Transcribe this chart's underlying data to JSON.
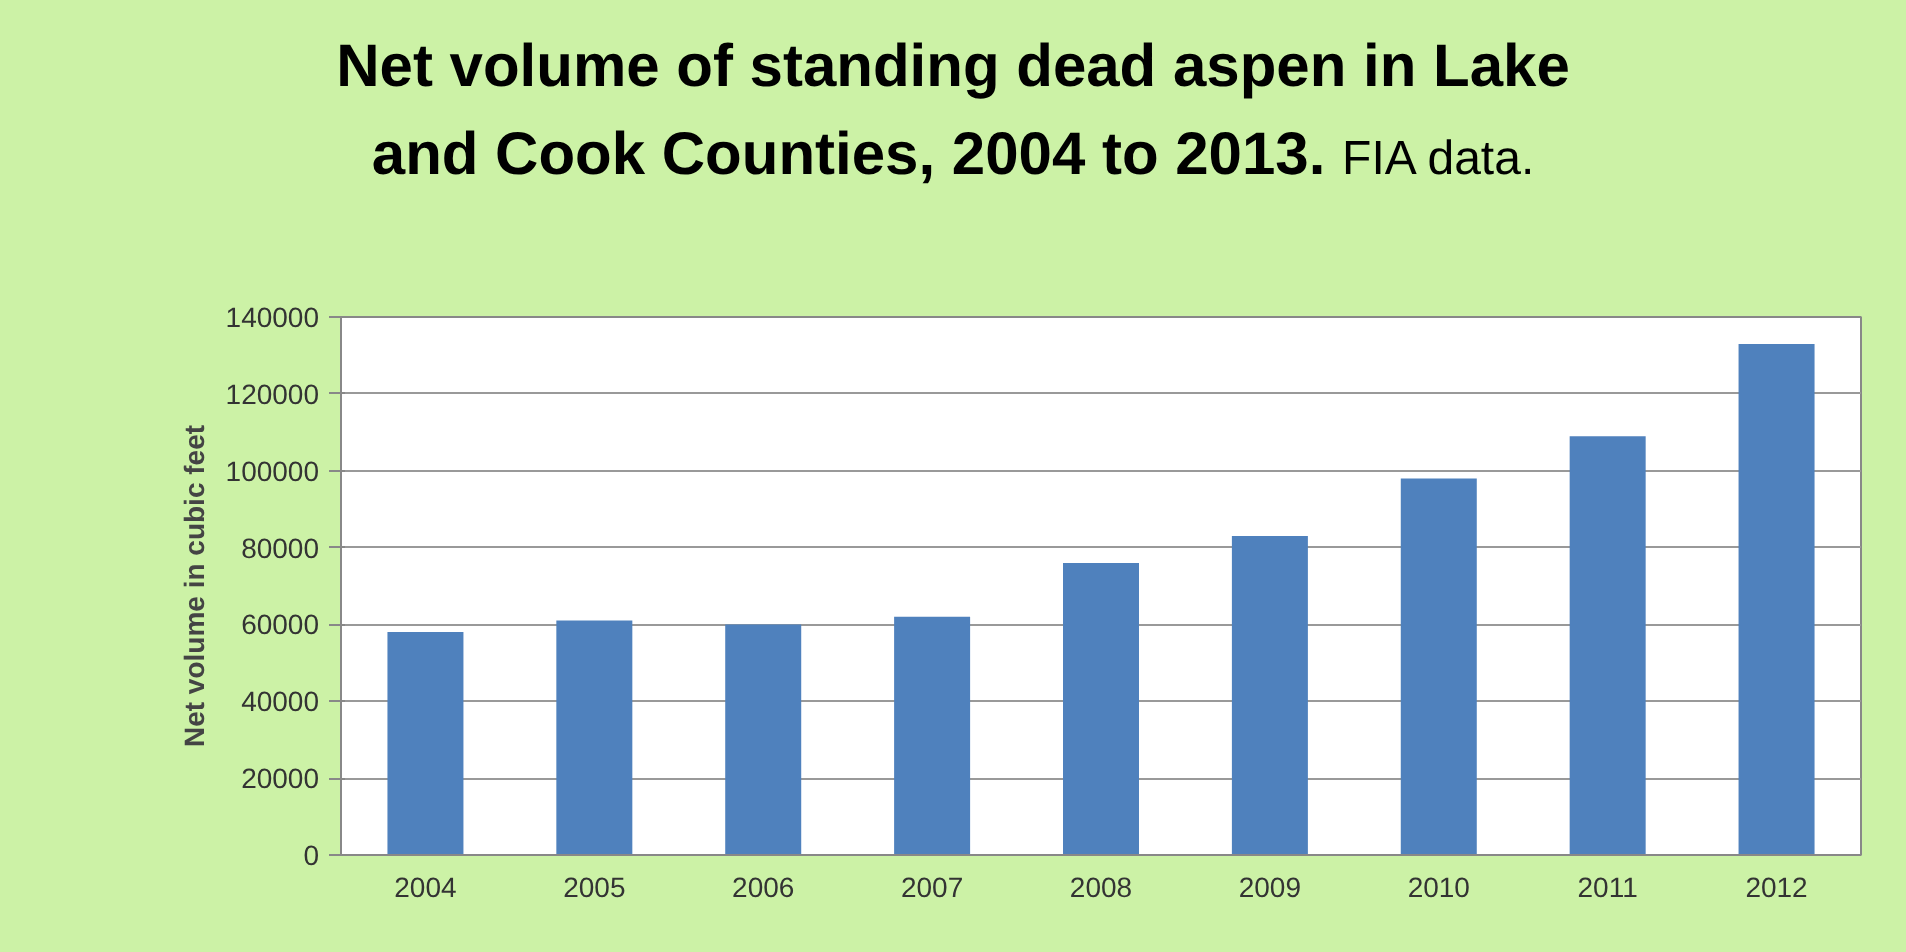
{
  "chart_data": {
    "type": "bar",
    "title": "Net volume of standing dead aspen in Lake and Cook Counties, 2004 to 2013.",
    "subtitle": "FIA data.",
    "ylabel": "Net volume in cubic feet",
    "categories": [
      "2004",
      "2005",
      "2006",
      "2007",
      "2008",
      "2009",
      "2010",
      "2011",
      "2012"
    ],
    "values": [
      58000,
      61000,
      60000,
      62000,
      76000,
      83000,
      98000,
      109000,
      133000
    ],
    "color": "#4f81bd",
    "ylim": [
      0,
      140000
    ],
    "yticks": [
      0,
      20000,
      40000,
      60000,
      80000,
      100000,
      120000,
      140000
    ],
    "grid": "y"
  }
}
